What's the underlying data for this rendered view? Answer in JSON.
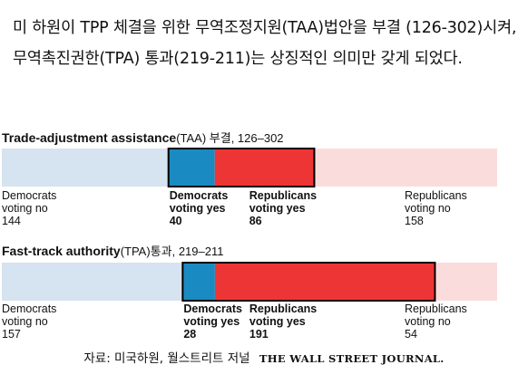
{
  "intro_text": "미 하원이 TPP 체결을 위한 무역조정지원(TAA)법안을 부결 (126-302)시켜, 무역촉진권한(TPA) 통과(219-211)는 상징적인 의미만 갖게 되었다.",
  "source": {
    "text": "자료: 미국하원, 월스트리트 저널",
    "publication": "THE WALL STREET JOURNAL."
  },
  "colors": {
    "dem_no": "#d6e3f0",
    "dem_yes": "#1a8ac2",
    "rep_yes": "#ee3535",
    "rep_no": "#fbdcdc",
    "outline": "#000000"
  },
  "chart_data": [
    {
      "type": "bar",
      "orientation": "horizontal-stacked",
      "title": "Trade-adjustment assistance",
      "title_suffix": "(TAA) 부결, 126–302",
      "segments": [
        {
          "label": "Democrats voting no",
          "line1": "Democrats",
          "line2": "voting no",
          "value": 144
        },
        {
          "label": "Democrats voting yes",
          "line1": "Democrats",
          "line2": "voting yes",
          "value": 40
        },
        {
          "label": "Republicans voting yes",
          "line1": "Republicans",
          "line2": "voting yes",
          "value": 86
        },
        {
          "label": "Republicans voting no",
          "line1": "Republicans",
          "line2": "voting no",
          "value": 158
        }
      ],
      "yes_total": 126,
      "no_total": 302
    },
    {
      "type": "bar",
      "orientation": "horizontal-stacked",
      "title": "Fast-track authority",
      "title_suffix": "(TPA)통과, 219–211",
      "segments": [
        {
          "label": "Democrats voting no",
          "line1": "Democrats",
          "line2": "voting no",
          "value": 157
        },
        {
          "label": "Democrats voting yes",
          "line1": "Democrats",
          "line2": "voting yes",
          "value": 28
        },
        {
          "label": "Republicans voting yes",
          "line1": "Republicans",
          "line2": "voting yes",
          "value": 191
        },
        {
          "label": "Republicans voting no",
          "line1": "Republicans",
          "line2": "voting no",
          "value": 54
        }
      ],
      "yes_total": 219,
      "no_total": 211
    }
  ]
}
